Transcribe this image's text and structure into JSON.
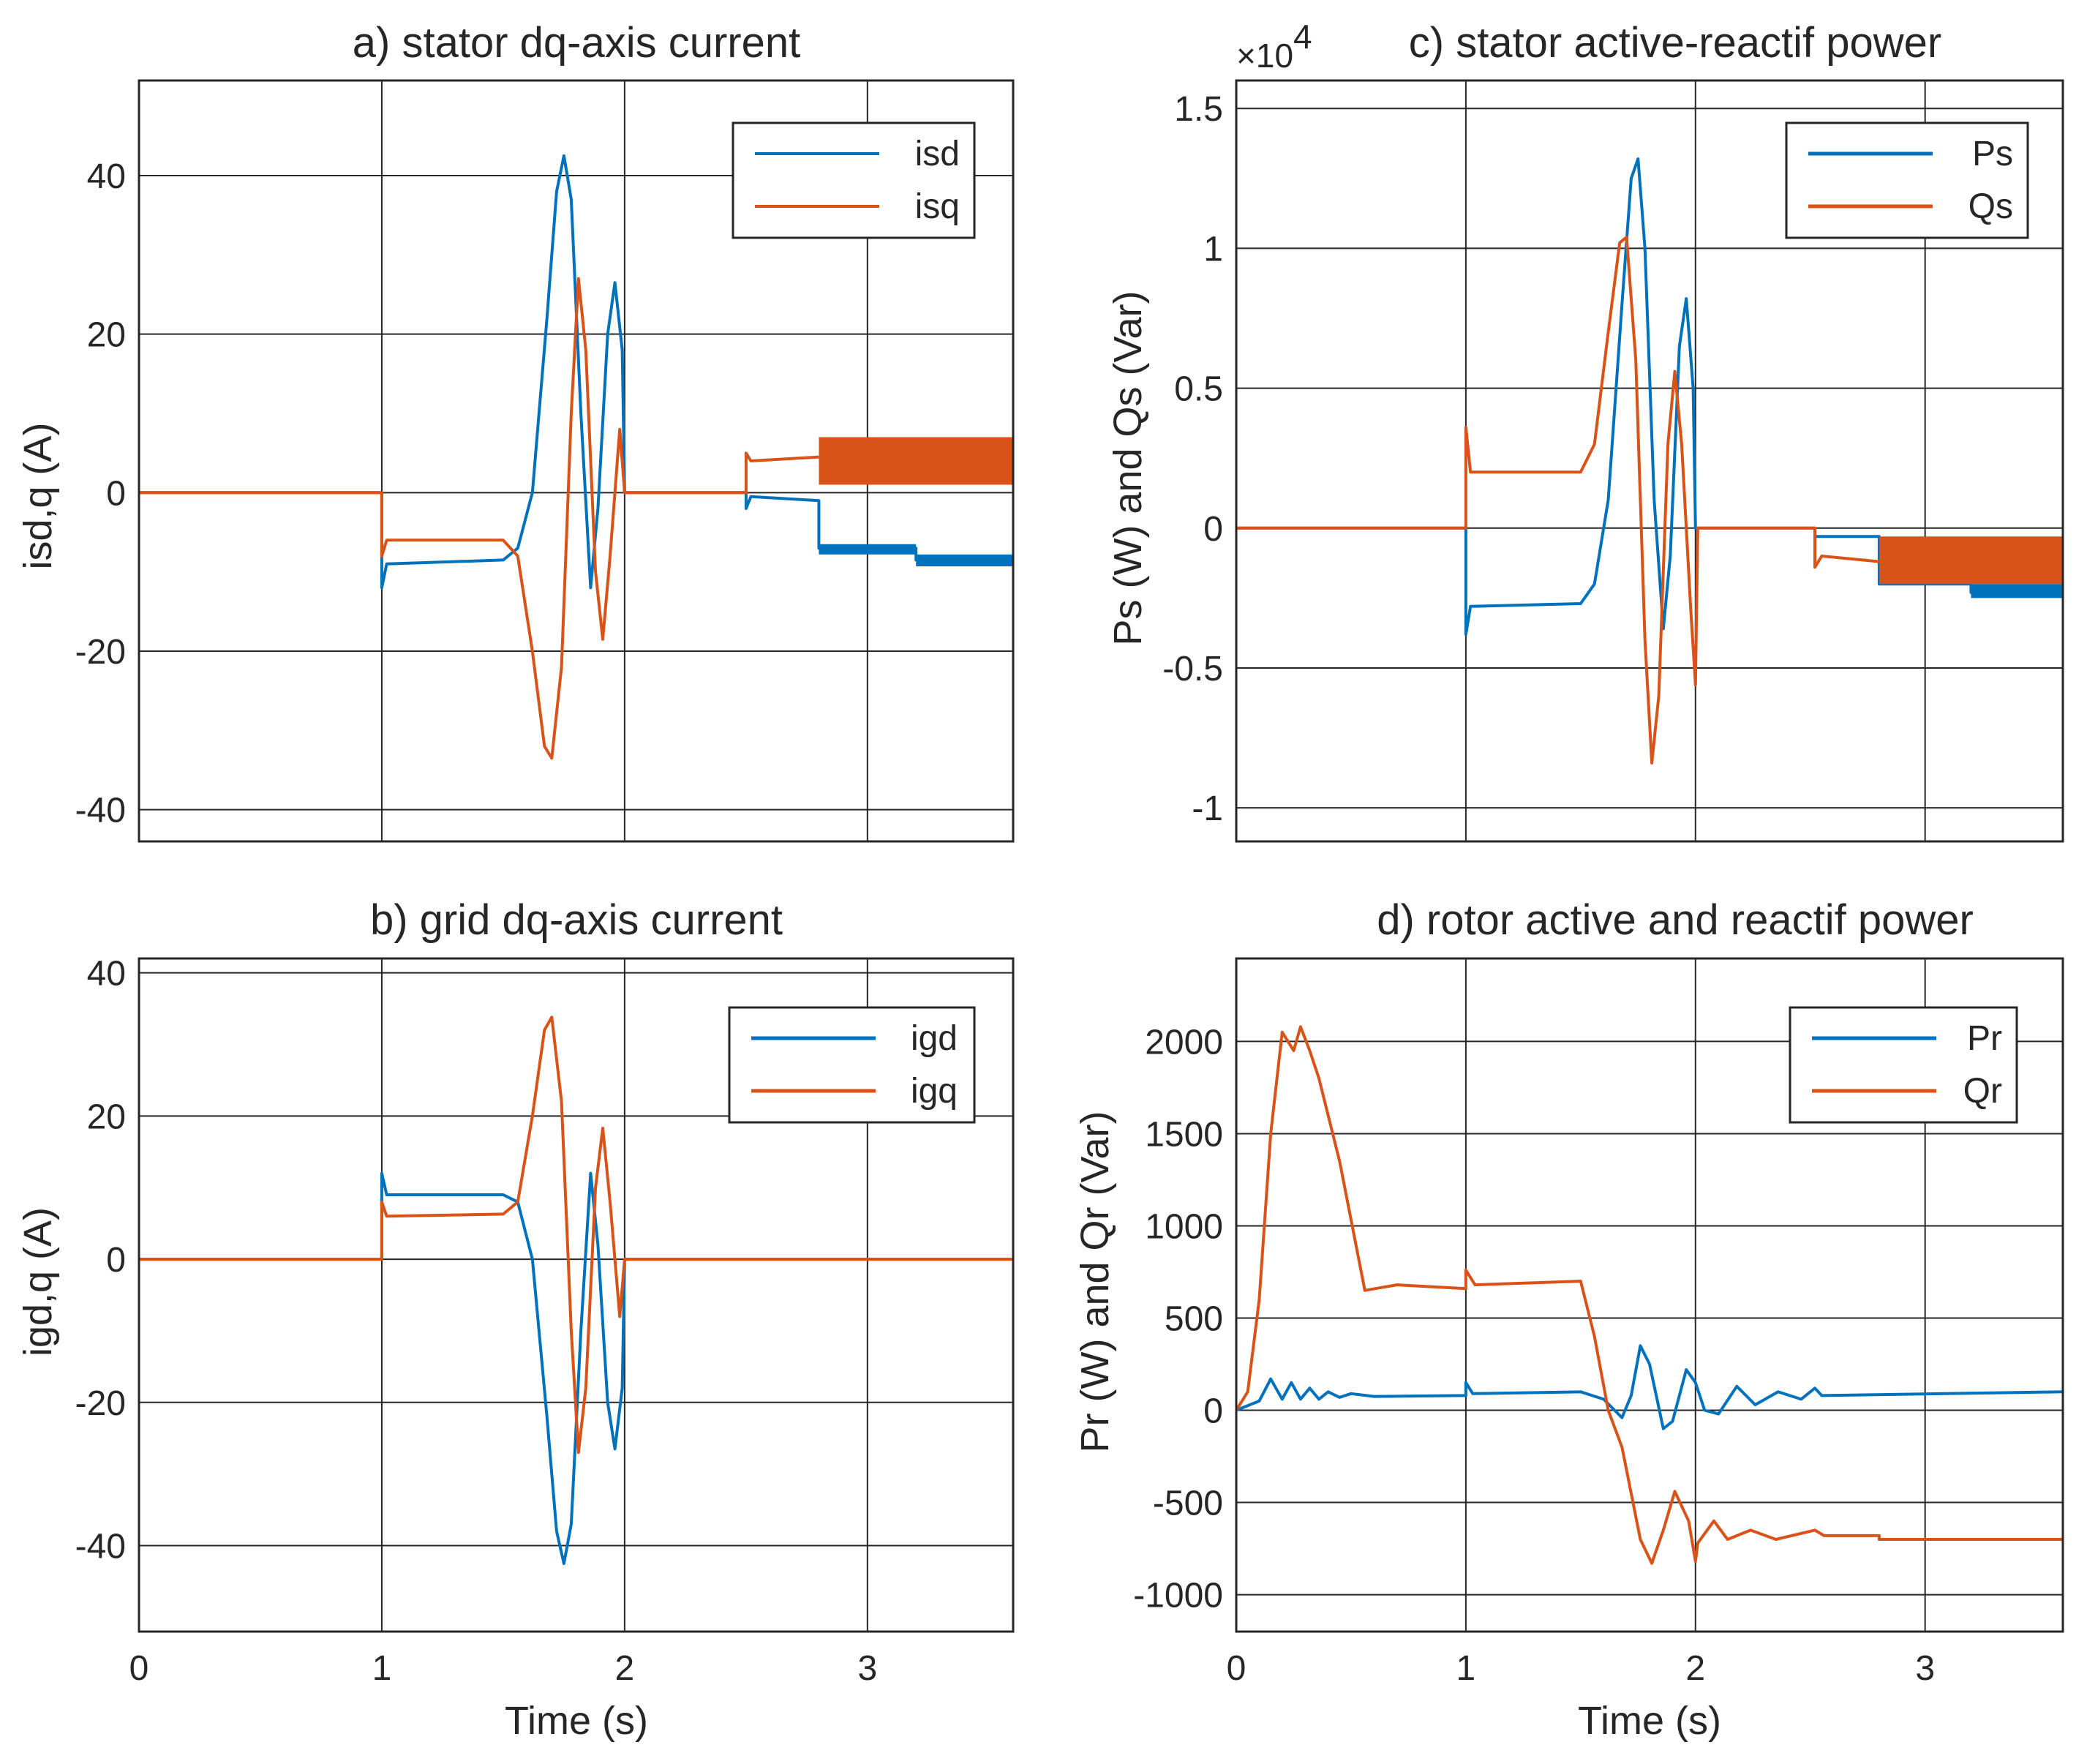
{
  "figure_colors": {
    "series1": "#0072BD",
    "series2": "#D95319",
    "axes": "#262626"
  },
  "chart_data": [
    {
      "id": "a",
      "type": "line",
      "title": "a) stator dq-axis current",
      "xlabel": "",
      "ylabel": "isd,q (A)",
      "xlim": [
        0,
        3.6
      ],
      "ylim": [
        -44,
        52
      ],
      "xticks": [
        0,
        1,
        2,
        3
      ],
      "yticks": [
        -40,
        -20,
        0,
        20,
        40
      ],
      "xtick_labels": [],
      "ytick_labels": [
        "-40",
        "-20",
        "0",
        "20",
        "40"
      ],
      "exponent_label": "",
      "grid": true,
      "legend": {
        "position": "top-right",
        "entries": [
          "isd",
          "isq"
        ]
      },
      "series": [
        {
          "name": "isd",
          "color": "#0072BD",
          "points": [
            [
              0,
              0
            ],
            [
              1,
              0
            ],
            [
              1,
              -12
            ],
            [
              1.02,
              -9
            ],
            [
              1.5,
              -8.5
            ],
            [
              1.56,
              -7
            ],
            [
              1.62,
              0
            ],
            [
              1.68,
              22
            ],
            [
              1.72,
              38
            ],
            [
              1.75,
              42.5
            ],
            [
              1.78,
              37
            ],
            [
              1.82,
              10
            ],
            [
              1.86,
              -12
            ],
            [
              1.89,
              -2
            ],
            [
              1.93,
              20
            ],
            [
              1.96,
              26.5
            ],
            [
              1.99,
              18
            ],
            [
              2.0,
              0
            ],
            [
              2.5,
              0
            ],
            [
              2.5,
              -2
            ],
            [
              2.52,
              -0.5
            ],
            [
              2.8,
              -1
            ],
            [
              2.8,
              -7
            ],
            [
              3.2,
              -7
            ],
            [
              3.2,
              -8.5
            ],
            [
              3.6,
              -8.5
            ]
          ],
          "bands": [
            [
              2.8,
              3.2,
              -6.5,
              -7.8
            ],
            [
              3.2,
              3.6,
              -7.8,
              -9.3
            ]
          ]
        },
        {
          "name": "isq",
          "color": "#D95319",
          "points": [
            [
              0,
              0
            ],
            [
              1,
              0
            ],
            [
              1,
              -8
            ],
            [
              1.02,
              -6
            ],
            [
              1.5,
              -6
            ],
            [
              1.56,
              -8
            ],
            [
              1.62,
              -20
            ],
            [
              1.67,
              -32
            ],
            [
              1.7,
              -33.5
            ],
            [
              1.74,
              -22
            ],
            [
              1.78,
              10
            ],
            [
              1.81,
              27
            ],
            [
              1.84,
              18
            ],
            [
              1.88,
              -10
            ],
            [
              1.91,
              -18.5
            ],
            [
              1.94,
              -8
            ],
            [
              1.98,
              8
            ],
            [
              2.0,
              0
            ],
            [
              2.5,
              0
            ],
            [
              2.5,
              5
            ],
            [
              2.52,
              4
            ],
            [
              2.8,
              4.5
            ]
          ],
          "bands": [
            [
              2.8,
              3.6,
              1,
              7
            ]
          ]
        }
      ]
    },
    {
      "id": "b",
      "type": "line",
      "title": "b) grid dq-axis current",
      "xlabel": "Time (s)",
      "ylabel": "igd,q (A)",
      "xlim": [
        0,
        3.6
      ],
      "ylim": [
        -52,
        42
      ],
      "xticks": [
        0,
        1,
        2,
        3
      ],
      "yticks": [
        -40,
        -20,
        0,
        20,
        40
      ],
      "xtick_labels": [
        "0",
        "1",
        "2",
        "3"
      ],
      "ytick_labels": [
        "-40",
        "-20",
        "0",
        "20",
        "40"
      ],
      "exponent_label": "",
      "grid": true,
      "legend": {
        "position": "top-right",
        "entries": [
          "igd",
          "igq"
        ]
      },
      "series": [
        {
          "name": "igd",
          "color": "#0072BD",
          "points": [
            [
              0,
              0
            ],
            [
              1,
              0
            ],
            [
              1,
              12
            ],
            [
              1.02,
              9
            ],
            [
              1.5,
              9
            ],
            [
              1.56,
              8
            ],
            [
              1.62,
              0
            ],
            [
              1.68,
              -22
            ],
            [
              1.72,
              -38
            ],
            [
              1.75,
              -42.5
            ],
            [
              1.78,
              -37
            ],
            [
              1.82,
              -10
            ],
            [
              1.86,
              12
            ],
            [
              1.89,
              2
            ],
            [
              1.93,
              -20
            ],
            [
              1.96,
              -26.5
            ],
            [
              1.99,
              -18
            ],
            [
              2.0,
              0
            ],
            [
              3.6,
              0
            ]
          ],
          "bands": []
        },
        {
          "name": "igq",
          "color": "#D95319",
          "points": [
            [
              0,
              0
            ],
            [
              1,
              0
            ],
            [
              1,
              8
            ],
            [
              1.02,
              6
            ],
            [
              1.5,
              6.3
            ],
            [
              1.56,
              8
            ],
            [
              1.62,
              20
            ],
            [
              1.67,
              32
            ],
            [
              1.7,
              33.8
            ],
            [
              1.74,
              22
            ],
            [
              1.78,
              -10
            ],
            [
              1.81,
              -27
            ],
            [
              1.84,
              -18
            ],
            [
              1.88,
              10
            ],
            [
              1.91,
              18.3
            ],
            [
              1.94,
              8
            ],
            [
              1.98,
              -8
            ],
            [
              2.0,
              0
            ],
            [
              3.6,
              0
            ]
          ],
          "bands": []
        }
      ]
    },
    {
      "id": "c",
      "type": "line",
      "title": "c) stator active-reactif power",
      "xlabel": "",
      "ylabel": "Ps (W) and Qs (Var)",
      "xlim": [
        0,
        3.6
      ],
      "ylim": [
        -1.12,
        1.6
      ],
      "xticks": [
        0,
        1,
        2,
        3
      ],
      "yticks": [
        -1,
        -0.5,
        0,
        0.5,
        1,
        1.5
      ],
      "xtick_labels": [],
      "ytick_labels": [
        "-1",
        "-0.5",
        "0",
        "0.5",
        "1",
        "1.5"
      ],
      "exponent_label": "×10",
      "exponent_power": "4",
      "grid": true,
      "legend": {
        "position": "top-right",
        "entries": [
          "Ps",
          "Qs"
        ]
      },
      "series": [
        {
          "name": "Ps",
          "color": "#0072BD",
          "points": [
            [
              0,
              0
            ],
            [
              1,
              0
            ],
            [
              1,
              -0.38
            ],
            [
              1.02,
              -0.28
            ],
            [
              1.5,
              -0.27
            ],
            [
              1.56,
              -0.2
            ],
            [
              1.62,
              0.1
            ],
            [
              1.68,
              0.8
            ],
            [
              1.72,
              1.25
            ],
            [
              1.75,
              1.32
            ],
            [
              1.78,
              1.0
            ],
            [
              1.82,
              0.1
            ],
            [
              1.86,
              -0.36
            ],
            [
              1.89,
              -0.1
            ],
            [
              1.93,
              0.65
            ],
            [
              1.96,
              0.82
            ],
            [
              1.99,
              0.5
            ],
            [
              2.0,
              0
            ],
            [
              2.52,
              0
            ],
            [
              2.52,
              -0.03
            ],
            [
              2.8,
              -0.03
            ],
            [
              2.8,
              -0.2
            ],
            [
              3.2,
              -0.2
            ],
            [
              3.2,
              -0.23
            ],
            [
              3.6,
              -0.23
            ]
          ],
          "bands": [
            [
              3.2,
              3.6,
              -0.2,
              -0.25
            ]
          ]
        },
        {
          "name": "Qs",
          "color": "#D95319",
          "points": [
            [
              0,
              0
            ],
            [
              1,
              0
            ],
            [
              1,
              0.36
            ],
            [
              1.02,
              0.2
            ],
            [
              1.5,
              0.2
            ],
            [
              1.56,
              0.3
            ],
            [
              1.62,
              0.7
            ],
            [
              1.67,
              1.02
            ],
            [
              1.7,
              1.04
            ],
            [
              1.74,
              0.6
            ],
            [
              1.78,
              -0.4
            ],
            [
              1.81,
              -0.84
            ],
            [
              1.84,
              -0.6
            ],
            [
              1.88,
              0.3
            ],
            [
              1.91,
              0.56
            ],
            [
              1.94,
              0.3
            ],
            [
              1.98,
              -0.3
            ],
            [
              2.0,
              -0.56
            ],
            [
              2.01,
              0
            ],
            [
              2.52,
              0
            ],
            [
              2.52,
              -0.14
            ],
            [
              2.55,
              -0.1
            ],
            [
              2.8,
              -0.12
            ]
          ],
          "bands": [
            [
              2.8,
              3.6,
              -0.03,
              -0.2
            ]
          ]
        }
      ]
    },
    {
      "id": "d",
      "type": "line",
      "title": "d) rotor active and reactif power",
      "xlabel": "Time (s)",
      "ylabel": "Pr (W) and Qr (Var)",
      "xlim": [
        0,
        3.6
      ],
      "ylim": [
        -1200,
        2450
      ],
      "xticks": [
        0,
        1,
        2,
        3
      ],
      "yticks": [
        -1000,
        -500,
        0,
        500,
        1000,
        1500,
        2000
      ],
      "xtick_labels": [
        "0",
        "1",
        "2",
        "3"
      ],
      "ytick_labels": [
        "-1000",
        "-500",
        "0",
        "500",
        "1000",
        "1500",
        "2000"
      ],
      "exponent_label": "",
      "grid": true,
      "legend": {
        "position": "top-right",
        "entries": [
          "Pr",
          "Qr"
        ]
      },
      "series": [
        {
          "name": "Pr",
          "color": "#0072BD",
          "points": [
            [
              0,
              0
            ],
            [
              0.1,
              50
            ],
            [
              0.15,
              170
            ],
            [
              0.2,
              60
            ],
            [
              0.24,
              150
            ],
            [
              0.28,
              60
            ],
            [
              0.32,
              120
            ],
            [
              0.36,
              60
            ],
            [
              0.4,
              100
            ],
            [
              0.45,
              70
            ],
            [
              0.5,
              90
            ],
            [
              0.6,
              75
            ],
            [
              1.0,
              80
            ],
            [
              1.0,
              150
            ],
            [
              1.03,
              90
            ],
            [
              1.5,
              100
            ],
            [
              1.6,
              60
            ],
            [
              1.68,
              -40
            ],
            [
              1.72,
              80
            ],
            [
              1.76,
              350
            ],
            [
              1.8,
              250
            ],
            [
              1.86,
              -100
            ],
            [
              1.9,
              -60
            ],
            [
              1.96,
              220
            ],
            [
              2.0,
              150
            ],
            [
              2.04,
              0
            ],
            [
              2.1,
              -20
            ],
            [
              2.18,
              130
            ],
            [
              2.26,
              30
            ],
            [
              2.36,
              100
            ],
            [
              2.46,
              60
            ],
            [
              2.52,
              120
            ],
            [
              2.55,
              80
            ],
            [
              3.6,
              100
            ]
          ],
          "bands": []
        },
        {
          "name": "Qr",
          "color": "#D95319",
          "points": [
            [
              0,
              0
            ],
            [
              0.05,
              100
            ],
            [
              0.1,
              600
            ],
            [
              0.15,
              1500
            ],
            [
              0.2,
              2050
            ],
            [
              0.25,
              1950
            ],
            [
              0.28,
              2080
            ],
            [
              0.32,
              1950
            ],
            [
              0.36,
              1800
            ],
            [
              0.45,
              1350
            ],
            [
              0.56,
              650
            ],
            [
              0.7,
              680
            ],
            [
              1.0,
              660
            ],
            [
              1.0,
              760
            ],
            [
              1.04,
              680
            ],
            [
              1.5,
              700
            ],
            [
              1.56,
              400
            ],
            [
              1.62,
              0
            ],
            [
              1.68,
              -200
            ],
            [
              1.76,
              -700
            ],
            [
              1.81,
              -830
            ],
            [
              1.86,
              -650
            ],
            [
              1.91,
              -440
            ],
            [
              1.97,
              -600
            ],
            [
              2.0,
              -820
            ],
            [
              2.01,
              -720
            ],
            [
              2.08,
              -600
            ],
            [
              2.14,
              -700
            ],
            [
              2.24,
              -650
            ],
            [
              2.35,
              -700
            ],
            [
              2.52,
              -650
            ],
            [
              2.56,
              -680
            ],
            [
              2.8,
              -680
            ],
            [
              2.8,
              -700
            ],
            [
              3.6,
              -700
            ]
          ],
          "bands": []
        }
      ]
    }
  ]
}
